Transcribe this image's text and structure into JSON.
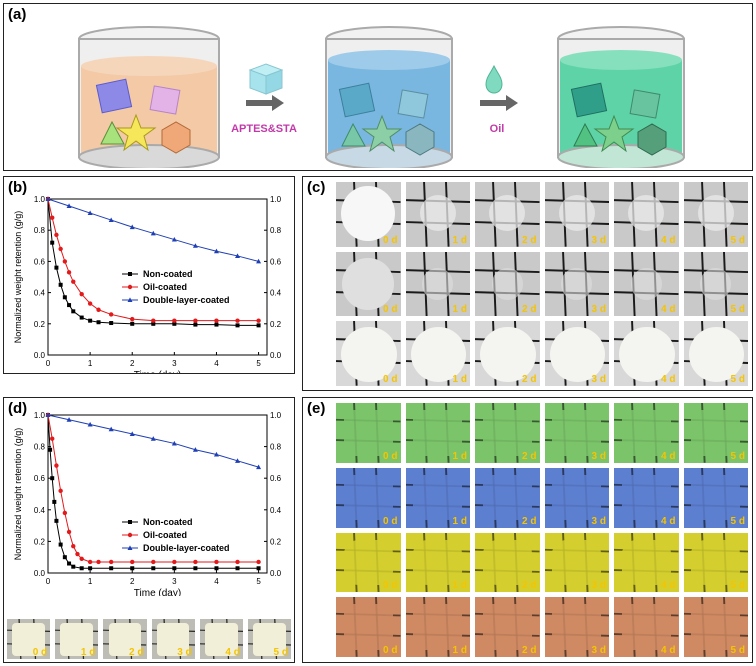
{
  "panels": {
    "a": "(a)",
    "b": "(b)",
    "c": "(c)",
    "d": "(d)",
    "e": "(e)"
  },
  "schematic": {
    "step1_label": "APTES&STA",
    "step2_label": "Oil",
    "colors": {
      "liquid1": "#f3c9a6",
      "liquid2": "#7ab7e0",
      "liquid3": "#5fd3a8",
      "step_label": "#c23aa8",
      "arrow": "#666666"
    }
  },
  "chart_b": {
    "ylabel": "Normalized weight retention (g/g)",
    "xlabel": "Time (day)",
    "xticks": [
      "0",
      "1",
      "2",
      "3",
      "4",
      "5"
    ],
    "yticks": [
      "0.0",
      "0.2",
      "0.4",
      "0.6",
      "0.8",
      "1.0"
    ],
    "legend": [
      "Non-coated",
      "Oil-coated",
      "Double-layer-coated"
    ]
  },
  "chart_d": {
    "ylabel": "Normalized weight retention (g/g)",
    "xlabel": "Time (day)",
    "xticks": [
      "0",
      "1",
      "2",
      "3",
      "4",
      "5"
    ],
    "yticks": [
      "0.0",
      "0.2",
      "0.4",
      "0.6",
      "0.8",
      "1.0"
    ],
    "legend": [
      "Non-coated",
      "Oil-coated",
      "Double-layer-coated"
    ]
  },
  "chart_data": [
    {
      "type": "line",
      "xlabel": "Time (day)",
      "ylabel": "Normalized weight retention (g/g)",
      "xlim": [
        0,
        5.2
      ],
      "ylim": [
        0,
        1.0
      ],
      "secondary_ylim": [
        0,
        1.0
      ],
      "legend_position": "center-right",
      "series": [
        {
          "name": "Non-coated",
          "color": "#000000",
          "marker": "square",
          "x": [
            0,
            0.1,
            0.2,
            0.3,
            0.4,
            0.5,
            0.6,
            0.8,
            1.0,
            1.2,
            1.5,
            2,
            2.5,
            3,
            3.5,
            4,
            4.5,
            5
          ],
          "y": [
            1.0,
            0.72,
            0.56,
            0.45,
            0.37,
            0.32,
            0.28,
            0.24,
            0.22,
            0.21,
            0.205,
            0.2,
            0.2,
            0.2,
            0.195,
            0.195,
            0.19,
            0.19
          ]
        },
        {
          "name": "Oil-coated",
          "color": "#e31a1c",
          "marker": "circle",
          "x": [
            0,
            0.1,
            0.2,
            0.3,
            0.4,
            0.5,
            0.6,
            0.8,
            1.0,
            1.2,
            1.5,
            2,
            2.5,
            3,
            3.5,
            4,
            4.5,
            5
          ],
          "y": [
            1.0,
            0.88,
            0.77,
            0.68,
            0.6,
            0.53,
            0.47,
            0.39,
            0.33,
            0.29,
            0.26,
            0.23,
            0.22,
            0.22,
            0.22,
            0.22,
            0.22,
            0.22
          ]
        },
        {
          "name": "Double-layer-coated",
          "color": "#1f3fb5",
          "marker": "triangle",
          "x": [
            0,
            0.5,
            1.0,
            1.5,
            2,
            2.5,
            3,
            3.5,
            4,
            4.5,
            5
          ],
          "y": [
            1.0,
            0.955,
            0.91,
            0.865,
            0.82,
            0.78,
            0.74,
            0.7,
            0.665,
            0.635,
            0.6
          ]
        }
      ]
    },
    {
      "type": "line",
      "xlabel": "Time (day)",
      "ylabel": "Normalized weight retention (g/g)",
      "xlim": [
        0,
        5.2
      ],
      "ylim": [
        0,
        1.0
      ],
      "secondary_ylim": [
        0,
        1.0
      ],
      "legend_position": "center-right",
      "series": [
        {
          "name": "Non-coated",
          "color": "#000000",
          "marker": "square",
          "x": [
            0,
            0.05,
            0.1,
            0.15,
            0.2,
            0.3,
            0.4,
            0.5,
            0.6,
            0.8,
            1.0,
            1.5,
            2,
            2.5,
            3,
            3.5,
            4,
            4.5,
            5
          ],
          "y": [
            1.0,
            0.78,
            0.6,
            0.45,
            0.33,
            0.18,
            0.1,
            0.06,
            0.04,
            0.03,
            0.03,
            0.03,
            0.03,
            0.03,
            0.03,
            0.03,
            0.03,
            0.03,
            0.03
          ]
        },
        {
          "name": "Oil-coated",
          "color": "#e31a1c",
          "marker": "circle",
          "x": [
            0,
            0.1,
            0.2,
            0.3,
            0.4,
            0.5,
            0.6,
            0.7,
            0.8,
            1.0,
            1.2,
            1.5,
            2,
            2.5,
            3,
            3.5,
            4,
            4.5,
            5
          ],
          "y": [
            1.0,
            0.85,
            0.68,
            0.52,
            0.38,
            0.26,
            0.17,
            0.12,
            0.09,
            0.07,
            0.07,
            0.07,
            0.07,
            0.07,
            0.07,
            0.07,
            0.07,
            0.07,
            0.07
          ]
        },
        {
          "name": "Double-layer-coated",
          "color": "#1f3fb5",
          "marker": "triangle",
          "x": [
            0,
            0.5,
            1.0,
            1.5,
            2,
            2.5,
            3,
            3.5,
            4,
            4.5,
            5
          ],
          "y": [
            1.0,
            0.97,
            0.94,
            0.91,
            0.88,
            0.85,
            0.82,
            0.78,
            0.75,
            0.71,
            0.67
          ]
        }
      ]
    }
  ],
  "photos_c": {
    "rows": [
      [
        "0 d",
        "1 d",
        "2 d",
        "3 d",
        "4 d",
        "5 d"
      ],
      [
        "0 d",
        "1 d",
        "2 d",
        "3 d",
        "4 d",
        "5 d"
      ],
      [
        "0 d",
        "1 d",
        "2 d",
        "3 d",
        "4 d",
        "5 d"
      ]
    ],
    "row_colors": [
      "#e9e9e9",
      "#dfdfdf",
      "#eeeeee"
    ]
  },
  "photos_d": {
    "labels": [
      "0 d",
      "1 d",
      "2 d",
      "3 d",
      "4 d",
      "5 d"
    ]
  },
  "photos_e": {
    "rows": [
      [
        "0 d",
        "1 d",
        "2 d",
        "3 d",
        "4 d",
        "5 d"
      ],
      [
        "0 d",
        "1 d",
        "2 d",
        "3 d",
        "4 d",
        "5 d"
      ],
      [
        "0 d",
        "1 d",
        "2 d",
        "3 d",
        "4 d",
        "5 d"
      ],
      [
        "0 d",
        "1 d",
        "2 d",
        "3 d",
        "4 d",
        "5 d"
      ]
    ],
    "row_colors": [
      "#7bc46a",
      "#5d7fd0",
      "#d4cf2e",
      "#cf8a63"
    ]
  }
}
